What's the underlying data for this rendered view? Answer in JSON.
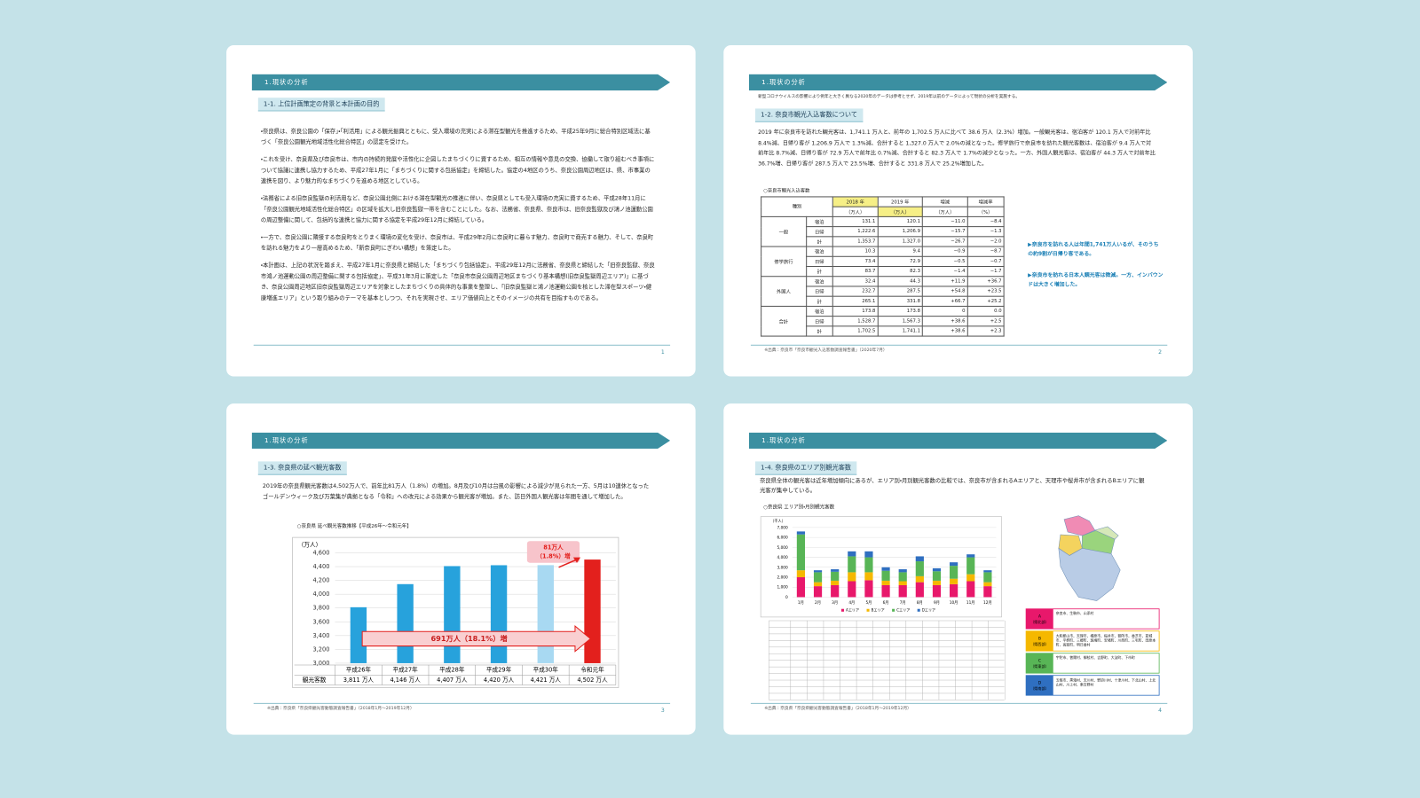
{
  "slides": [
    {
      "header": "1.現状の分析",
      "section": "1-1. 上位計画策定の背景と本計画の目的",
      "paragraphs": [
        "・奈良県は、奈良公園の「保存」・「利活用」による観光振興とともに、受入環境の充実による滞在型観光を推進するため、平成25年9月に総合特別区域法に基づく「奈良公園観光地域活性化総合特区」の認定を受けた。",
        "・これを受け、奈良県及び奈良市は、市内の持続的発展や活性化に企図したまちづくりに資するため、相互の情報や意見の交換、協働して取り組むべき事項について協議に連携し協力するため、平成27年1月に「まちづくりに関する包括協定」を締結した。協定の4地区のうち、奈良公園周辺地区は、県、市事業の連携を図り、より魅力的なまちづくりを進める地区としている。",
        "・法務省による旧奈良監獄の利活用など、奈良公園北側における滞在型観光の推進に伴い、奈良県としても受入環境の充実に資するため、平成28年11月に「奈良公園観光地域活性化総合特区」の区域を拡大し旧奈良監獄一帯を含むことにした。なお、法務省、奈良県、奈良市は、旧奈良監獄及び鴻ノ池運動公園の周辺整備に関して、包括的な連携と協力に関する協定を平成29年12月に締結している。",
        "・一方で、奈良公園に隣接する奈良町をとりまく環境の変化を受け、奈良市は、平成29年2月に奈良町に暮らす魅力、奈良町で商売する魅力、そして、奈良町を訪れる魅力をより一層高めるため、「新奈良町にぎわい構想」を策定した。",
        "・本計画は、上記の状況を踏まえ、平成27年1月に奈良県と締結した「まちづくり包括協定」、平成29年12月に法務省、奈良県と締結した「旧奈良監獄、奈良市鴻ノ池運動公園の周辺整備に関する包括協定」、平成31年3月に策定した「奈良市奈良公園周辺地区まちづくり基本構想(旧奈良監獄周辺エリア)」に基づき、奈良公園周辺地区旧奈良監獄周辺エリアを対象としたまちづくりの具体的な事業を整理し、「旧奈良監獄と鴻ノ池運動公園を核とした滞在型スポーツ・健康増進エリア」という取り組みのテーマを基本としつつ、それを実現させ、エリア価値向上とそのイメージの共有を目指すものである。"
      ],
      "page": "1"
    },
    {
      "header": "1.現状の分析",
      "note": "新型コロナウイルスの影響により例年と大きく異なる2020年のデータは参考とせず、2019年以前のデータによって現状の分析を実施する。",
      "section": "1-2. 奈良市観光入込客数について",
      "paragraphs": [
        "2019 年に奈良市を訪れた観光客は、1,741.1 万人と、前年の 1,702.5 万人に比べて 38.6 万人（2.3%）増加。一般観光客は、宿泊客が 120.1 万人で対前年比 8.4%減、日帰り客が 1,206.9 万人で 1.3%減、合計すると 1,327.0 万人で 2.0%の減となった。修学旅行で奈良市を訪れた観光客数は、宿泊客が 9.4 万人で対前年比 8.7%減、日帰り客が 72.9 万人で前年比 0.7%減、合計すると 82.3 万人で 1.7%の減少となった。一方、外国人観光客は、宿泊客が 44.3 万人で対前年比 36.7%増、日帰り客が 287.5 万人で 23.5%増、合計すると 331.8 万人で 25.2%増加した。"
      ],
      "table": {
        "caption": "○奈良市観光入込客数",
        "header": [
          "種別",
          "2018 年",
          "2019 年",
          "増減",
          "増減率"
        ],
        "units": [
          "（万人）",
          "（万人）",
          "（万人）",
          "（%）"
        ],
        "groups": [
          {
            "name": "一般",
            "rows": [
              [
                "宿泊",
                "131.1",
                "120.1",
                "−11.0",
                "−8.4"
              ],
              [
                "日帰",
                "1,222.6",
                "1,206.9",
                "−15.7",
                "−1.3"
              ],
              [
                "計",
                "1,353.7",
                "1,327.0",
                "−26.7",
                "−2.0"
              ]
            ]
          },
          {
            "name": "修学旅行",
            "rows": [
              [
                "宿泊",
                "10.3",
                "9.4",
                "−0.9",
                "−8.7"
              ],
              [
                "日帰",
                "73.4",
                "72.9",
                "−0.5",
                "−0.7"
              ],
              [
                "計",
                "83.7",
                "82.3",
                "−1.4",
                "−1.7"
              ]
            ]
          },
          {
            "name": "外国人",
            "rows": [
              [
                "宿泊",
                "32.4",
                "44.3",
                "+11.9",
                "+36.7"
              ],
              [
                "日帰",
                "232.7",
                "287.5",
                "+54.8",
                "+23.5"
              ],
              [
                "計",
                "265.1",
                "331.8",
                "+66.7",
                "+25.2"
              ]
            ]
          },
          {
            "name": "合計",
            "rows": [
              [
                "宿泊",
                "173.8",
                "173.8",
                "0",
                "0.0"
              ],
              [
                "日帰",
                "1,528.7",
                "1,567.3",
                "+38.6",
                "+2.5"
              ],
              [
                "計",
                "1,702.5",
                "1,741.1",
                "+38.6",
                "+2.3"
              ]
            ]
          }
        ]
      },
      "callouts": [
        "▶奈良市を訪れる人は年間1,741万人いるが、そのうちの約9割が日帰り客である。",
        "▶奈良市を訪れる日本人観光客は微減。一方、インバウンドは大きく増加した。"
      ],
      "source": "※出典：奈良市「奈良市観光入込客数調査報告書」（2020年7月）",
      "page": "2"
    },
    {
      "header": "1.現状の分析",
      "section": "1-3. 奈良県の延べ観光客数",
      "paragraphs": [
        "2019年の奈良県観光客数は4,502万人で、前年比81万人（1.8%）の増加。8月及び10月は台風の影響による減少が見られた一方、5月は10連休となったゴールデンウィーク及び万葉集が典拠となる「令和」への改元による効果から観光客が増加。また、訪日外国人観光客は年間を通して増加した。"
      ],
      "chart": {
        "type": "bar",
        "title": "○奈良県 延べ観光客数推移【平成26年～令和元年】",
        "unit": "（万人）",
        "row_label": "観光客数",
        "categories": [
          "平成26年",
          "平成27年",
          "平成28年",
          "平成29年",
          "平成30年",
          "令和元年"
        ],
        "values": [
          3811,
          4146,
          4407,
          4420,
          4421,
          4502
        ],
        "value_labels": [
          "3,811 万人",
          "4,146 万人",
          "4,407 万人",
          "4,420 万人",
          "4,421 万人",
          "4,502 万人"
        ],
        "colors": [
          "#27a2dc",
          "#27a2dc",
          "#27a2dc",
          "#27a2dc",
          "#a8d9f2",
          "#e3201d"
        ],
        "ylim": [
          3000,
          4600
        ],
        "yticks": [
          {
            "value": 3000,
            "label": "3,000"
          },
          {
            "value": 3200,
            "label": "3,200"
          },
          {
            "value": 3400,
            "label": "3,400"
          },
          {
            "value": 3600,
            "label": "3,600"
          },
          {
            "value": 3800,
            "label": "3,800"
          },
          {
            "value": 4000,
            "label": "4,000"
          },
          {
            "value": 4200,
            "label": "4,200"
          },
          {
            "value": 4400,
            "label": "4,400"
          },
          {
            "value": 4600,
            "label": "4,600"
          }
        ],
        "grid": true,
        "annotations": [
          [
            "81万人",
            "（1.8%）増"
          ],
          [
            "691万人（18.1%）増"
          ]
        ]
      },
      "source": "※出典：奈良県「奈良県観光客動態調査報告書」（2018年1月～2019年12月）",
      "page": "3"
    },
    {
      "header": "1.現状の分析",
      "section": "1-4. 奈良県のエリア別観光客数",
      "paragraphs": [
        "奈良県全体の観光客は近年増加傾向にあるが、エリア別・月別観光客数の比較では、奈良市が含まれるAエリアと、天理市や桜井市が含まれるBエリアに観光客が集中している。"
      ],
      "chart": {
        "type": "stacked-bar",
        "title": "○奈良県 エリア別・月別観光客数",
        "unit": "（千人）",
        "categories": [
          "1月",
          "2月",
          "3月",
          "4月",
          "5月",
          "6月",
          "7月",
          "8月",
          "9月",
          "10月",
          "11月",
          "12月"
        ],
        "series": [
          {
            "name": "Aエリア",
            "color": "#e8186b",
            "values": [
              2000,
              1100,
              1200,
              1600,
              1700,
              1200,
              1200,
              1500,
              1200,
              1300,
              1600,
              1100
            ]
          },
          {
            "name": "Bエリア",
            "color": "#f5b800",
            "values": [
              700,
              400,
              450,
              900,
              800,
              450,
              400,
              600,
              450,
              550,
              700,
              400
            ]
          },
          {
            "name": "Cエリア",
            "color": "#58b556",
            "values": [
              3600,
              1000,
              900,
              1600,
              1500,
              1000,
              900,
              1500,
              950,
              1300,
              1700,
              1000
            ]
          },
          {
            "name": "Dエリア",
            "color": "#2f6fc0",
            "values": [
              300,
              200,
              250,
              500,
              600,
              350,
              300,
              500,
              300,
              350,
              300,
              200
            ]
          }
        ],
        "ylim": [
          0,
          7000
        ],
        "yticks": [
          0,
          {
            "value": 1000,
            "label": "1,000"
          },
          {
            "value": 2000,
            "label": "2,000"
          },
          {
            "value": 3000,
            "label": "3,000"
          },
          {
            "value": 4000,
            "label": "4,000"
          },
          {
            "value": 5000,
            "label": "5,000"
          },
          {
            "value": 6000,
            "label": "6,000"
          },
          {
            "value": 7000,
            "label": "7,000"
          }
        ],
        "grid": true
      },
      "area_legend": [
        {
          "code": "A",
          "region": "（県北部）",
          "towns": "奈良市、生駒市、山添村",
          "color": "#e8186b"
        },
        {
          "code": "B",
          "region": "（県西部）",
          "towns": "大和郡山市、天理市、橿原市、桜井市、御所市、香芝市、葛城市、平群町、三郷町、斑鳩町、安堵町、川西町、三宅町、田原本町、高取町、明日香村",
          "color": "#f5b800"
        },
        {
          "code": "C",
          "region": "（県東部）",
          "towns": "宇陀市、曽爾村、御杖村、吉野町、大淀町、下市町",
          "color": "#58b556"
        },
        {
          "code": "D",
          "region": "（県南部）",
          "towns": "五條市、黒滝村、天川村、野迫川村、十津川村、下北山村、上北山村、川上村、東吉野村",
          "color": "#2f6fc0"
        }
      ],
      "source": "※出典：奈良県「奈良県観光客動態調査報告書」（2018年1月～2019年12月）",
      "page": "4"
    }
  ]
}
